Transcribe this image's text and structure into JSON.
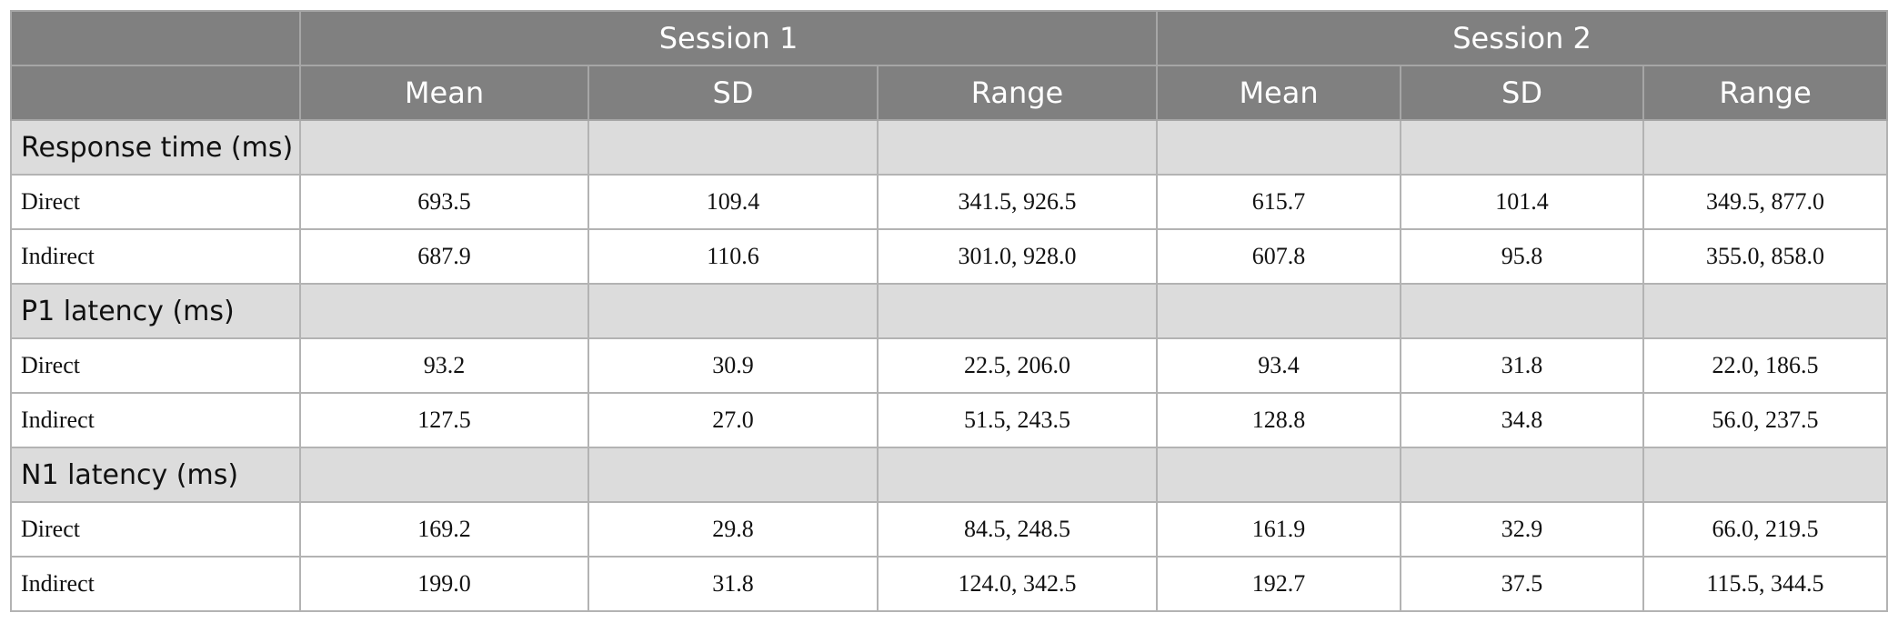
{
  "table": {
    "groups": [
      "Session 1",
      "Session 2"
    ],
    "columns": [
      "Mean",
      "SD",
      "Range",
      "Mean",
      "SD",
      "Range"
    ],
    "sections": [
      {
        "title": "Response time (ms)",
        "rows": [
          [
            "Direct",
            "693.5",
            "109.4",
            "341.5, 926.5",
            "615.7",
            "101.4",
            "349.5, 877.0"
          ],
          [
            "Indirect",
            "687.9",
            "110.6",
            "301.0, 928.0",
            "607.8",
            "95.8",
            "355.0, 858.0"
          ]
        ]
      },
      {
        "title": "P1 latency (ms)",
        "rows": [
          [
            "Direct",
            "93.2",
            "30.9",
            "22.5, 206.0",
            "93.4",
            "31.8",
            "22.0, 186.5"
          ],
          [
            "Indirect",
            "127.5",
            "27.0",
            "51.5, 243.5",
            "128.8",
            "34.8",
            "56.0, 237.5"
          ]
        ]
      },
      {
        "title": "N1 latency (ms)",
        "rows": [
          [
            "Direct",
            "169.2",
            "29.8",
            "84.5, 248.5",
            "161.9",
            "32.9",
            "66.0, 219.5"
          ],
          [
            "Indirect",
            "199.0",
            "31.8",
            "124.0, 342.5",
            "192.7",
            "37.5",
            "115.5, 344.5"
          ]
        ]
      }
    ]
  }
}
